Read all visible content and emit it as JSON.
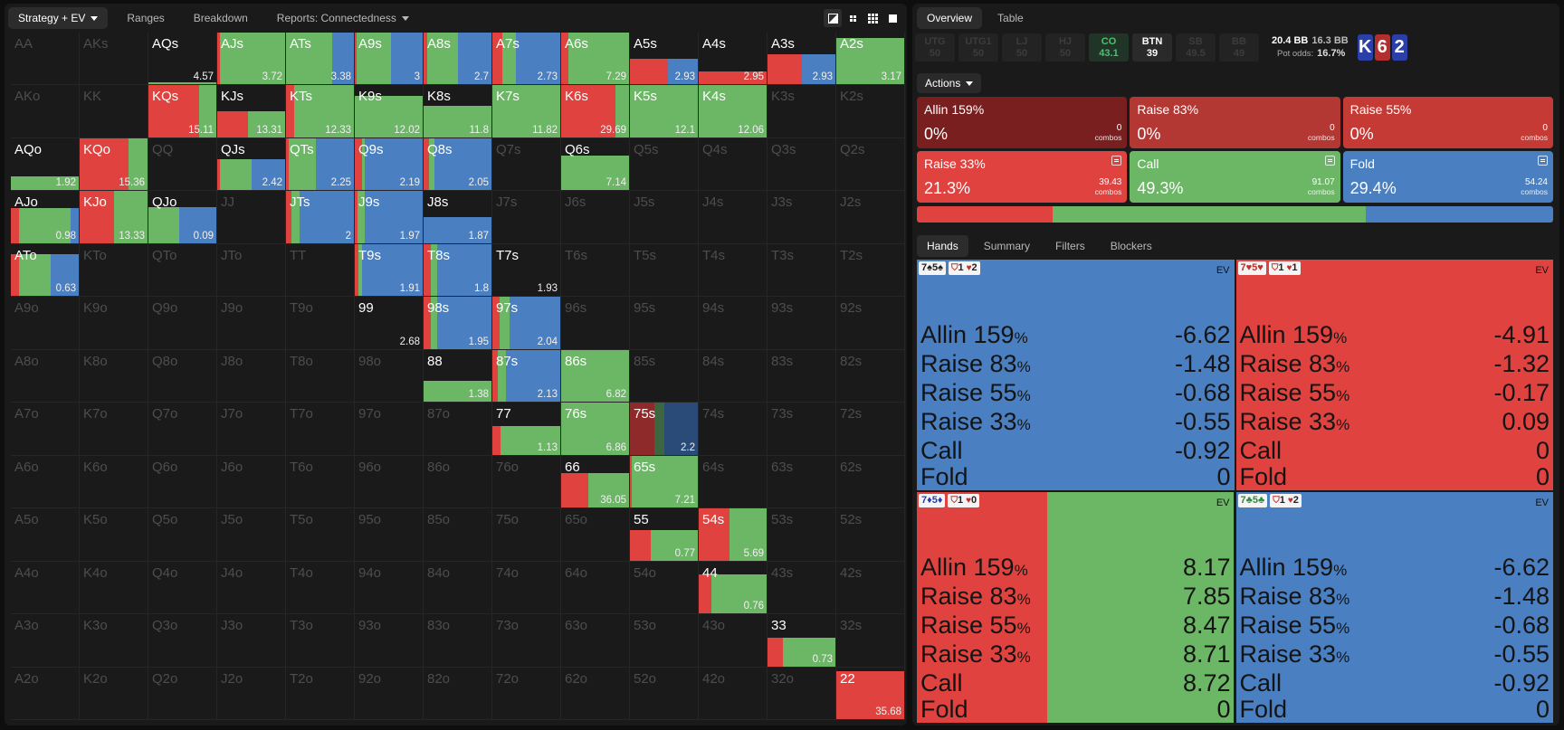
{
  "colors": {
    "raise": "#e0433f",
    "call": "#6cb765",
    "fold": "#4a7fc1",
    "allin": "#7a1f1f",
    "big_raise": "#c63a36"
  },
  "left_nav": {
    "tabs": [
      {
        "label": "Strategy + EV",
        "active": true,
        "dropdown": true
      },
      {
        "label": "Ranges"
      },
      {
        "label": "Breakdown"
      },
      {
        "label": "Reports: Connectedness",
        "dropdown": true
      }
    ],
    "view_icons": [
      "contrast-icon",
      "grid-small-icon",
      "grid-icon",
      "square-icon"
    ]
  },
  "grid": {
    "rows": [
      [
        "AA",
        "AKs",
        "AQs",
        "AJs",
        "ATs",
        "A9s",
        "A8s",
        "A7s",
        "A6s",
        "A5s",
        "A4s",
        "A3s",
        "A2s"
      ],
      [
        "AKo",
        "KK",
        "KQs",
        "KJs",
        "KTs",
        "K9s",
        "K8s",
        "K7s",
        "K6s",
        "K5s",
        "K4s",
        "K3s",
        "K2s"
      ],
      [
        "AQo",
        "KQo",
        "QQ",
        "QJs",
        "QTs",
        "Q9s",
        "Q8s",
        "Q7s",
        "Q6s",
        "Q5s",
        "Q4s",
        "Q3s",
        "Q2s"
      ],
      [
        "AJo",
        "KJo",
        "QJo",
        "JJ",
        "JTs",
        "J9s",
        "J8s",
        "J7s",
        "J6s",
        "J5s",
        "J4s",
        "J3s",
        "J2s"
      ],
      [
        "ATo",
        "KTo",
        "QTo",
        "JTo",
        "TT",
        "T9s",
        "T8s",
        "T7s",
        "T6s",
        "T5s",
        "T4s",
        "T3s",
        "T2s"
      ],
      [
        "A9o",
        "K9o",
        "Q9o",
        "J9o",
        "T9o",
        "99",
        "98s",
        "97s",
        "96s",
        "95s",
        "94s",
        "93s",
        "92s"
      ],
      [
        "A8o",
        "K8o",
        "Q8o",
        "J8o",
        "T8o",
        "98o",
        "88",
        "87s",
        "86s",
        "85s",
        "84s",
        "83s",
        "82s"
      ],
      [
        "A7o",
        "K7o",
        "Q7o",
        "J7o",
        "T7o",
        "97o",
        "87o",
        "77",
        "76s",
        "75s",
        "74s",
        "73s",
        "72s"
      ],
      [
        "A6o",
        "K6o",
        "Q6o",
        "J6o",
        "T6o",
        "96o",
        "86o",
        "76o",
        "66",
        "65s",
        "64s",
        "63s",
        "62s"
      ],
      [
        "A5o",
        "K5o",
        "Q5o",
        "J5o",
        "T5o",
        "95o",
        "85o",
        "75o",
        "65o",
        "55",
        "54s",
        "53s",
        "52s"
      ],
      [
        "A4o",
        "K4o",
        "Q4o",
        "J4o",
        "T4o",
        "94o",
        "84o",
        "74o",
        "64o",
        "54o",
        "44",
        "43s",
        "42s"
      ],
      [
        "A3o",
        "K3o",
        "Q3o",
        "J3o",
        "T3o",
        "93o",
        "83o",
        "73o",
        "63o",
        "53o",
        "43o",
        "33",
        "32s"
      ],
      [
        "A2o",
        "K2o",
        "Q2o",
        "J2o",
        "T2o",
        "92o",
        "82o",
        "72o",
        "62o",
        "52o",
        "42o",
        "32o",
        "22"
      ]
    ],
    "active": {
      "AQs": {
        "ev": "4.57",
        "h": 0.05,
        "m": [
          [
            "#6cb765",
            1
          ]
        ]
      },
      "AJs": {
        "ev": "3.72",
        "h": 1,
        "m": [
          [
            "#e0433f",
            0.04
          ],
          [
            "#6cb765",
            0.96
          ]
        ]
      },
      "ATs": {
        "ev": "3.38",
        "h": 1,
        "m": [
          [
            "#6cb765",
            0.68
          ],
          [
            "#4a7fc1",
            0.32
          ]
        ]
      },
      "A9s": {
        "ev": "3",
        "h": 1,
        "m": [
          [
            "#e0433f",
            0.03
          ],
          [
            "#6cb765",
            0.5
          ],
          [
            "#4a7fc1",
            0.47
          ]
        ]
      },
      "A8s": {
        "ev": "2.7",
        "h": 1,
        "m": [
          [
            "#e0433f",
            0.05
          ],
          [
            "#6cb765",
            0.45
          ],
          [
            "#4a7fc1",
            0.5
          ]
        ]
      },
      "A7s": {
        "ev": "2.73",
        "h": 1,
        "m": [
          [
            "#e0433f",
            0.15
          ],
          [
            "#6cb765",
            0.2
          ],
          [
            "#4a7fc1",
            0.65
          ]
        ]
      },
      "A6s": {
        "ev": "7.29",
        "h": 1,
        "m": [
          [
            "#e0433f",
            0.1
          ],
          [
            "#6cb765",
            0.9
          ]
        ]
      },
      "A5s": {
        "ev": "2.93",
        "h": 0.5,
        "m": [
          [
            "#e0433f",
            0.56
          ],
          [
            "#4a7fc1",
            0.44
          ]
        ]
      },
      "A4s": {
        "ev": "2.95",
        "h": 0.25,
        "m": [
          [
            "#e0433f",
            1
          ]
        ]
      },
      "A3s": {
        "ev": "2.93",
        "h": 0.58,
        "m": [
          [
            "#e0433f",
            0.5
          ],
          [
            "#4a7fc1",
            0.5
          ]
        ]
      },
      "A2s": {
        "ev": "3.17",
        "h": 0.9,
        "m": [
          [
            "#6cb765",
            1
          ]
        ]
      },
      "KQs": {
        "ev": "15.11",
        "h": 1,
        "m": [
          [
            "#e0433f",
            0.75
          ],
          [
            "#6cb765",
            0.25
          ]
        ]
      },
      "KJs": {
        "ev": "13.31",
        "h": 0.5,
        "m": [
          [
            "#e0433f",
            0.45
          ],
          [
            "#6cb765",
            0.55
          ]
        ]
      },
      "KTs": {
        "ev": "12.33",
        "h": 1,
        "m": [
          [
            "#e0433f",
            0.12
          ],
          [
            "#6cb765",
            0.88
          ]
        ]
      },
      "K9s": {
        "ev": "12.02",
        "h": 0.8,
        "m": [
          [
            "#6cb765",
            1
          ]
        ]
      },
      "K8s": {
        "ev": "11.8",
        "h": 0.6,
        "m": [
          [
            "#6cb765",
            1
          ]
        ]
      },
      "K7s": {
        "ev": "11.82",
        "h": 1,
        "m": [
          [
            "#6cb765",
            1
          ]
        ]
      },
      "K6s": {
        "ev": "29.69",
        "h": 1,
        "m": [
          [
            "#e0433f",
            0.8
          ],
          [
            "#6cb765",
            0.2
          ]
        ]
      },
      "K5s": {
        "ev": "12.1",
        "h": 1,
        "m": [
          [
            "#6cb765",
            1
          ]
        ]
      },
      "K4s": {
        "ev": "12.06",
        "h": 1,
        "m": [
          [
            "#6cb765",
            1
          ]
        ]
      },
      "AQo": {
        "ev": "1.92",
        "h": 0.27,
        "m": [
          [
            "#6cb765",
            1
          ]
        ]
      },
      "KQo": {
        "ev": "15.36",
        "h": 1,
        "m": [
          [
            "#e0433f",
            0.72
          ],
          [
            "#6cb765",
            0.28
          ]
        ]
      },
      "QJs": {
        "ev": "2.42",
        "h": 0.6,
        "m": [
          [
            "#e0433f",
            0.04
          ],
          [
            "#6cb765",
            0.46
          ],
          [
            "#4a7fc1",
            0.5
          ]
        ]
      },
      "QTs": {
        "ev": "2.25",
        "h": 1,
        "m": [
          [
            "#e0433f",
            0.04
          ],
          [
            "#6cb765",
            0.4
          ],
          [
            "#4a7fc1",
            0.56
          ]
        ]
      },
      "Q9s": {
        "ev": "2.19",
        "h": 1,
        "m": [
          [
            "#e0433f",
            0.1
          ],
          [
            "#6cb765",
            0.05
          ],
          [
            "#4a7fc1",
            0.85
          ]
        ]
      },
      "Q8s": {
        "ev": "2.05",
        "h": 1,
        "m": [
          [
            "#e0433f",
            0.08
          ],
          [
            "#6cb765",
            0.08
          ],
          [
            "#4a7fc1",
            0.84
          ]
        ]
      },
      "Q6s": {
        "ev": "7.14",
        "h": 0.67,
        "m": [
          [
            "#6cb765",
            1
          ]
        ]
      },
      "AJo": {
        "ev": "0.98",
        "h": 0.67,
        "m": [
          [
            "#e0433f",
            0.12
          ],
          [
            "#6cb765",
            0.76
          ],
          [
            "#4a7fc1",
            0.12
          ]
        ]
      },
      "KJo": {
        "ev": "13.33",
        "h": 1,
        "m": [
          [
            "#e0433f",
            0.5
          ],
          [
            "#6cb765",
            0.5
          ]
        ]
      },
      "QJo": {
        "ev": "0.09",
        "h": 0.7,
        "m": [
          [
            "#6cb765",
            0.45
          ],
          [
            "#4a7fc1",
            0.55
          ]
        ]
      },
      "JTs": {
        "ev": "2",
        "h": 1,
        "m": [
          [
            "#e0433f",
            0.08
          ],
          [
            "#6cb765",
            0.12
          ],
          [
            "#4a7fc1",
            0.8
          ]
        ]
      },
      "J9s": {
        "ev": "1.97",
        "h": 1,
        "m": [
          [
            "#e0433f",
            0.04
          ],
          [
            "#6cb765",
            0.1
          ],
          [
            "#4a7fc1",
            0.86
          ]
        ]
      },
      "J8s": {
        "ev": "1.87",
        "h": 0.5,
        "m": [
          [
            "#4a7fc1",
            1
          ]
        ]
      },
      "ATo": {
        "ev": "0.63",
        "h": 0.8,
        "m": [
          [
            "#e0433f",
            0.12
          ],
          [
            "#6cb765",
            0.46
          ],
          [
            "#4a7fc1",
            0.42
          ]
        ]
      },
      "T9s": {
        "ev": "1.91",
        "h": 1,
        "m": [
          [
            "#e0433f",
            0.05
          ],
          [
            "#6cb765",
            0.05
          ],
          [
            "#4a7fc1",
            0.9
          ]
        ]
      },
      "T8s": {
        "ev": "1.8",
        "h": 1,
        "m": [
          [
            "#e0433f",
            0.1
          ],
          [
            "#6cb765",
            0.1
          ],
          [
            "#4a7fc1",
            0.8
          ]
        ]
      },
      "T7s": {
        "ev": "1.93",
        "h": 0,
        "m": []
      },
      "99": {
        "ev": "2.68",
        "h": 0,
        "m": []
      },
      "98s": {
        "ev": "1.95",
        "h": 1,
        "m": [
          [
            "#e0433f",
            0.1
          ],
          [
            "#6cb765",
            0.1
          ],
          [
            "#4a7fc1",
            0.8
          ]
        ]
      },
      "97s": {
        "ev": "2.04",
        "h": 1,
        "m": [
          [
            "#e0433f",
            0.1
          ],
          [
            "#6cb765",
            0.15
          ],
          [
            "#4a7fc1",
            0.75
          ]
        ]
      },
      "88": {
        "ev": "1.38",
        "h": 0.4,
        "m": [
          [
            "#6cb765",
            1
          ]
        ]
      },
      "87s": {
        "ev": "2.13",
        "h": 1,
        "m": [
          [
            "#e0433f",
            0.08
          ],
          [
            "#6cb765",
            0.12
          ],
          [
            "#4a7fc1",
            0.8
          ]
        ]
      },
      "86s": {
        "ev": "6.82",
        "h": 1,
        "m": [
          [
            "#6cb765",
            1
          ]
        ]
      },
      "77": {
        "ev": "1.13",
        "h": 0.55,
        "m": [
          [
            "#e0433f",
            0.12
          ],
          [
            "#6cb765",
            0.88
          ]
        ]
      },
      "76s": {
        "ev": "6.86",
        "h": 1,
        "m": [
          [
            "#6cb765",
            1
          ]
        ]
      },
      "75s": {
        "ev": "2.2",
        "h": 1,
        "m": [
          [
            "#8f2a2a",
            0.36
          ],
          [
            "#3b6640",
            0.14
          ],
          [
            "#2a4a78",
            0.5
          ]
        ]
      },
      "66": {
        "ev": "36.05",
        "h": 0.67,
        "m": [
          [
            "#e0433f",
            0.4
          ],
          [
            "#6cb765",
            0.6
          ]
        ]
      },
      "65s": {
        "ev": "7.21",
        "h": 1,
        "m": [
          [
            "#e0433f",
            0.03
          ],
          [
            "#6cb765",
            0.97
          ]
        ]
      },
      "55": {
        "ev": "0.77",
        "h": 0.58,
        "m": [
          [
            "#e0433f",
            0.3
          ],
          [
            "#6cb765",
            0.7
          ]
        ]
      },
      "54s": {
        "ev": "5.69",
        "h": 1,
        "m": [
          [
            "#e0433f",
            0.45
          ],
          [
            "#6cb765",
            0.55
          ]
        ]
      },
      "44": {
        "ev": "0.76",
        "h": 0.75,
        "m": [
          [
            "#e0433f",
            0.18
          ],
          [
            "#6cb765",
            0.82
          ]
        ]
      },
      "33": {
        "ev": "0.73",
        "h": 0.55,
        "m": [
          [
            "#e0433f",
            0.22
          ],
          [
            "#6cb765",
            0.78
          ]
        ]
      },
      "22": {
        "ev": "35.68",
        "h": 0.92,
        "m": [
          [
            "#e0433f",
            1
          ]
        ]
      }
    }
  },
  "right_nav": {
    "tabs": [
      {
        "label": "Overview",
        "active": true
      },
      {
        "label": "Table"
      }
    ]
  },
  "seats": [
    {
      "name": "UTG",
      "value": "50",
      "kind": "dim"
    },
    {
      "name": "UTG1",
      "value": "50",
      "kind": "dim"
    },
    {
      "name": "LJ",
      "value": "50",
      "kind": "dim"
    },
    {
      "name": "HJ",
      "value": "50",
      "kind": "dim"
    },
    {
      "name": "CO",
      "value": "43.1",
      "kind": "co"
    },
    {
      "name": "BTN",
      "value": "39",
      "kind": "btn"
    },
    {
      "name": "SB",
      "value": "49.5",
      "kind": "dim"
    },
    {
      "name": "BB",
      "value": "49",
      "kind": "dim"
    }
  ],
  "pot": {
    "bb": "20.4 BB",
    "bb2": "16.3 BB",
    "odds_label": "Pot odds:",
    "odds": "16.7%"
  },
  "board": [
    {
      "rank": "K",
      "color": "#2b3fa8"
    },
    {
      "rank": "6",
      "color": "#b52e2e"
    },
    {
      "rank": "2",
      "color": "#2b3fa8"
    }
  ],
  "actions_label": "Actions",
  "actions": [
    {
      "name": "Allin 159%",
      "pct": "0%",
      "combos": "0",
      "combos_label": "combos",
      "color": "#7a1f1f",
      "note": false
    },
    {
      "name": "Raise 83%",
      "pct": "0%",
      "combos": "0",
      "combos_label": "combos",
      "color": "#b33733",
      "note": false
    },
    {
      "name": "Raise 55%",
      "pct": "0%",
      "combos": "0",
      "combos_label": "combos",
      "color": "#c63a36",
      "note": false
    },
    {
      "name": "Raise 33%",
      "pct": "21.3%",
      "combos": "39.43",
      "combos_label": "combos",
      "color": "#e0433f",
      "note": true
    },
    {
      "name": "Call",
      "pct": "49.3%",
      "combos": "91.07",
      "combos_label": "combos",
      "color": "#6cb765",
      "note": true
    },
    {
      "name": "Fold",
      "pct": "29.4%",
      "combos": "54.24",
      "combos_label": "combos",
      "color": "#4a7fc1",
      "note": true
    }
  ],
  "freq": [
    {
      "color": "#e0433f",
      "pct": 21.3
    },
    {
      "color": "#6cb765",
      "pct": 49.3
    },
    {
      "color": "#4a7fc1",
      "pct": 29.4
    }
  ],
  "hand_tabs": [
    {
      "label": "Hands",
      "active": true
    },
    {
      "label": "Summary"
    },
    {
      "label": "Filters"
    },
    {
      "label": "Blockers"
    }
  ],
  "combos": [
    {
      "cards": "7♠5♠",
      "card_color": "#222",
      "blockers": "1",
      "blockers2": "2",
      "ev_label": "EV",
      "bg": [
        [
          "#4a7fc1",
          1
        ]
      ],
      "rows": [
        [
          "Allin 159",
          "%",
          "-6.62"
        ],
        [
          "Raise 83",
          "%",
          "-1.48"
        ],
        [
          "Raise 55",
          "%",
          "-0.68"
        ],
        [
          "Raise 33",
          "%",
          "-0.55"
        ],
        [
          "Call",
          "",
          "-0.92"
        ],
        [
          "Fold",
          "",
          "0"
        ]
      ]
    },
    {
      "cards": "7♥5♥",
      "card_color": "#c0302c",
      "blockers": "1",
      "blockers2": "1",
      "ev_label": "EV",
      "bg": [
        [
          "#e0433f",
          1
        ]
      ],
      "rows": [
        [
          "Allin 159",
          "%",
          "-4.91"
        ],
        [
          "Raise 83",
          "%",
          "-1.32"
        ],
        [
          "Raise 55",
          "%",
          "-0.17"
        ],
        [
          "Raise 33",
          "%",
          "0.09"
        ],
        [
          "Call",
          "",
          "0"
        ],
        [
          "Fold",
          "",
          "0"
        ]
      ]
    },
    {
      "cards": "7♦5♦",
      "card_color": "#2b3fa8",
      "blockers": "1",
      "blockers2": "0",
      "ev_label": "EV",
      "bg": [
        [
          "#e0433f",
          0.41
        ],
        [
          "#6cb765",
          0.59
        ]
      ],
      "rows": [
        [
          "Allin 159",
          "%",
          "8.17"
        ],
        [
          "Raise 83",
          "%",
          "7.85"
        ],
        [
          "Raise 55",
          "%",
          "8.47"
        ],
        [
          "Raise 33",
          "%",
          "8.71"
        ],
        [
          "Call",
          "",
          "8.72"
        ],
        [
          "Fold",
          "",
          "0"
        ]
      ]
    },
    {
      "cards": "7♣5♣",
      "card_color": "#2e8b3a",
      "blockers": "1",
      "blockers2": "2",
      "ev_label": "EV",
      "bg": [
        [
          "#4a7fc1",
          1
        ]
      ],
      "rows": [
        [
          "Allin 159",
          "%",
          "-6.62"
        ],
        [
          "Raise 83",
          "%",
          "-1.48"
        ],
        [
          "Raise 55",
          "%",
          "-0.68"
        ],
        [
          "Raise 33",
          "%",
          "-0.55"
        ],
        [
          "Call",
          "",
          "-0.92"
        ],
        [
          "Fold",
          "",
          "0"
        ]
      ]
    }
  ]
}
